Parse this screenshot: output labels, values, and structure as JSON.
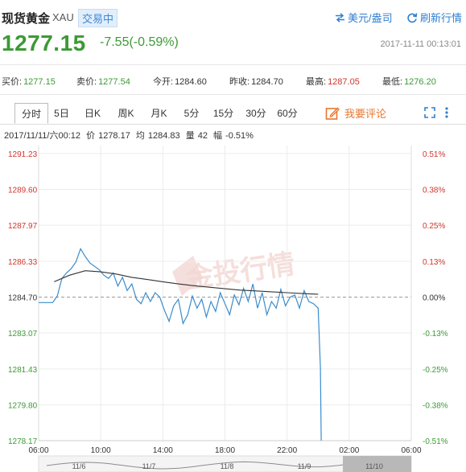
{
  "header": {
    "name": "现货黄金",
    "code": "XAU",
    "status": "交易中",
    "unit_toggle": "美元/盎司",
    "refresh": "刷新行情"
  },
  "quote": {
    "price": "1277.15",
    "change": "-7.55(-0.59%)",
    "timestamp": "2017-11-11 00:13:01"
  },
  "stats": [
    {
      "label": "买价:",
      "value": "1277.15",
      "color": "#3c9a36"
    },
    {
      "label": "卖价:",
      "value": "1277.54",
      "color": "#3c9a36"
    },
    {
      "label": "今开:",
      "value": "1284.60",
      "color": "#333333"
    },
    {
      "label": "昨收:",
      "value": "1284.70",
      "color": "#333333"
    },
    {
      "label": "最高:",
      "value": "1287.05",
      "color": "#d0352c"
    },
    {
      "label": "最低:",
      "value": "1276.20",
      "color": "#3c9a36"
    }
  ],
  "tabs": [
    "分时",
    "5日",
    "日K",
    "周K",
    "月K",
    "5分",
    "15分",
    "30分",
    "60分"
  ],
  "active_tab": "分时",
  "comment_label": "我要评论",
  "info": {
    "datetime": "2017/11/11/六00:12",
    "price_label": "价",
    "price": "1278.17",
    "avg_label": "均",
    "avg": "1284.83",
    "vol_label": "量",
    "vol": "42",
    "amp_label": "幅",
    "amp": "-0.51%"
  },
  "watermark": "金投行情",
  "chart_data": {
    "type": "line",
    "title": "",
    "xlabel": "",
    "ylabel": "",
    "ylim": [
      1278.17,
      1291.23
    ],
    "xlim": [
      "06:00",
      "06:00+1"
    ],
    "prev_close": 1284.7,
    "y_ticks": [
      "1291.23",
      "1289.60",
      "1287.97",
      "1286.33",
      "1284.70",
      "1283.07",
      "1281.43",
      "1279.80",
      "1278.17"
    ],
    "pct_ticks": [
      "0.51%",
      "0.38%",
      "0.25%",
      "0.13%",
      "0.00%",
      "-0.13%",
      "-0.25%",
      "-0.38%",
      "-0.51%"
    ],
    "x_ticks": [
      "06:00",
      "10:00",
      "14:00",
      "18:00",
      "22:00",
      "02:00",
      "06:00"
    ],
    "grid": true,
    "series": [
      {
        "key": "price",
        "color": "#3b8ccc",
        "x_hours": [
          0,
          0.3,
          0.6,
          0.9,
          1.2,
          1.5,
          1.8,
          2.1,
          2.4,
          2.7,
          3.0,
          3.3,
          3.6,
          3.9,
          4.2,
          4.5,
          4.8,
          5.1,
          5.4,
          5.7,
          6.0,
          6.3,
          6.6,
          6.9,
          7.2,
          7.5,
          7.8,
          8.1,
          8.4,
          8.7,
          9.0,
          9.3,
          9.6,
          9.9,
          10.2,
          10.5,
          10.8,
          11.1,
          11.4,
          11.7,
          12.0,
          12.3,
          12.6,
          12.9,
          13.2,
          13.5,
          13.8,
          14.1,
          14.4,
          14.7,
          15.0,
          15.3,
          15.6,
          15.9,
          16.2,
          16.5,
          16.8,
          17.1,
          17.4,
          17.7,
          18.0,
          18.15,
          18.2
        ],
        "values": [
          1284.45,
          1284.45,
          1284.45,
          1284.45,
          1284.75,
          1285.55,
          1285.8,
          1286.0,
          1286.3,
          1286.9,
          1286.55,
          1286.25,
          1286.1,
          1285.95,
          1285.7,
          1285.55,
          1285.8,
          1285.2,
          1285.6,
          1285.0,
          1285.3,
          1284.6,
          1284.4,
          1284.9,
          1284.5,
          1284.9,
          1284.7,
          1284.1,
          1283.6,
          1284.3,
          1284.6,
          1283.5,
          1283.9,
          1284.75,
          1284.2,
          1284.6,
          1283.8,
          1284.5,
          1284.05,
          1284.9,
          1284.4,
          1283.9,
          1284.8,
          1284.35,
          1285.1,
          1284.5,
          1285.3,
          1284.2,
          1284.9,
          1283.9,
          1284.5,
          1284.2,
          1285.05,
          1284.3,
          1284.7,
          1284.8,
          1284.2,
          1285.0,
          1284.5,
          1284.4,
          1284.2,
          1281.5,
          1278.17
        ]
      },
      {
        "key": "average",
        "color": "#333333",
        "x_hours": [
          1.0,
          2.0,
          3.0,
          4.0,
          5.0,
          6.0,
          7.0,
          8.0,
          9.0,
          10.0,
          11.0,
          12.0,
          13.0,
          14.0,
          15.0,
          16.0,
          17.0,
          18.0
        ],
        "values": [
          1285.4,
          1285.7,
          1285.9,
          1285.85,
          1285.75,
          1285.6,
          1285.5,
          1285.4,
          1285.3,
          1285.22,
          1285.15,
          1285.08,
          1285.02,
          1284.98,
          1284.94,
          1284.9,
          1284.86,
          1284.83
        ]
      }
    ],
    "overview_labels": [
      "11/6",
      "11/7",
      "11/8",
      "11/9",
      "11/10"
    ]
  }
}
